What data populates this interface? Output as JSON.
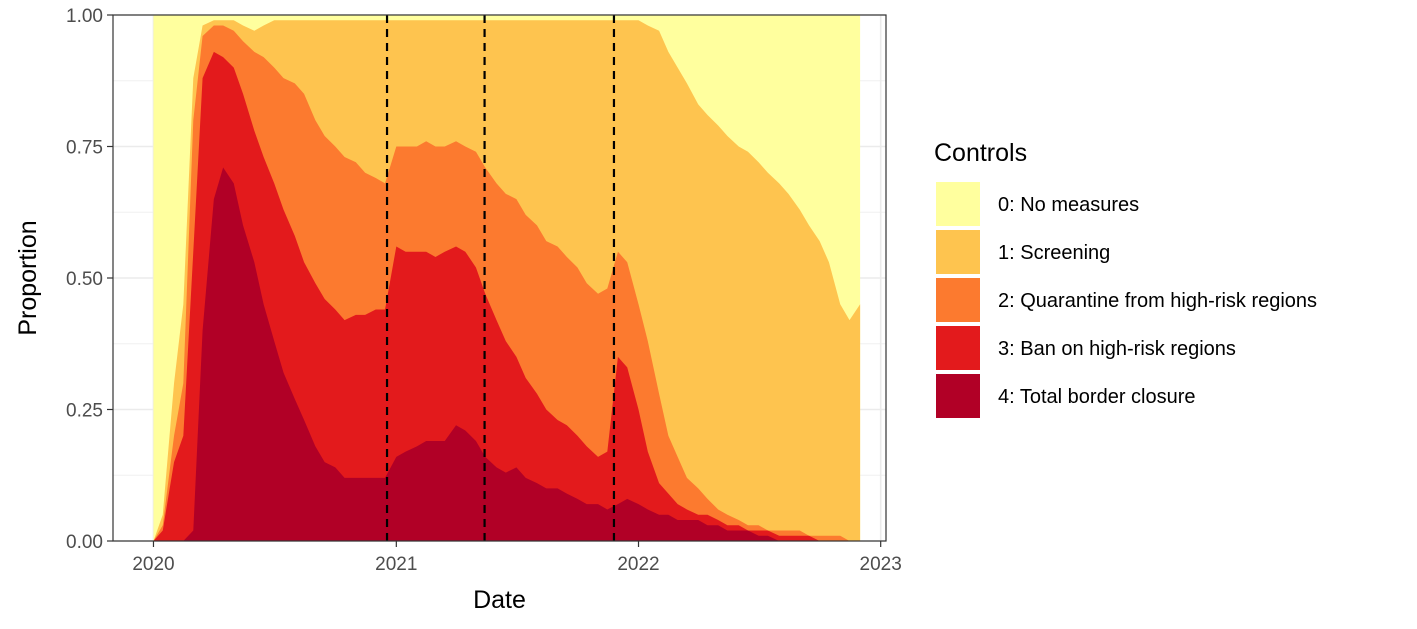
{
  "chart_data": {
    "type": "area",
    "stacked": true,
    "title": "",
    "xlabel": "Date",
    "ylabel": "Proportion",
    "x_ticks": [
      "2020",
      "2021",
      "2022",
      "2023"
    ],
    "y_ticks": [
      "0.00",
      "0.25",
      "0.50",
      "0.75",
      "1.00"
    ],
    "xlim": [
      "2019-11-01",
      "2023-01-09"
    ],
    "ylim": [
      0,
      1
    ],
    "grid": true,
    "reference_lines": [
      "2020-12-18",
      "2021-05-14",
      "2021-11-25"
    ],
    "legend": {
      "title": "Controls",
      "position": "right"
    },
    "x": [
      "2020-01-01",
      "2020-01-15",
      "2020-02-01",
      "2020-02-15",
      "2020-03-01",
      "2020-03-15",
      "2020-04-01",
      "2020-04-15",
      "2020-05-01",
      "2020-05-15",
      "2020-06-01",
      "2020-06-15",
      "2020-07-01",
      "2020-07-15",
      "2020-08-01",
      "2020-08-15",
      "2020-09-01",
      "2020-09-15",
      "2020-10-01",
      "2020-10-15",
      "2020-11-01",
      "2020-11-15",
      "2020-12-01",
      "2020-12-15",
      "2021-01-01",
      "2021-01-15",
      "2021-02-01",
      "2021-02-15",
      "2021-03-01",
      "2021-03-15",
      "2021-04-01",
      "2021-04-15",
      "2021-05-01",
      "2021-05-15",
      "2021-06-01",
      "2021-06-15",
      "2021-07-01",
      "2021-07-15",
      "2021-08-01",
      "2021-08-15",
      "2021-09-01",
      "2021-09-15",
      "2021-10-01",
      "2021-10-15",
      "2021-11-01",
      "2021-11-15",
      "2021-12-01",
      "2021-12-15",
      "2022-01-01",
      "2022-01-15",
      "2022-02-01",
      "2022-02-15",
      "2022-03-01",
      "2022-03-15",
      "2022-04-01",
      "2022-04-15",
      "2022-05-01",
      "2022-05-15",
      "2022-06-01",
      "2022-06-15",
      "2022-07-01",
      "2022-07-15",
      "2022-08-01",
      "2022-08-15",
      "2022-09-01",
      "2022-09-15",
      "2022-10-01",
      "2022-10-15",
      "2022-11-01",
      "2022-11-15",
      "2022-12-01"
    ],
    "series": [
      {
        "name": "4: Total border closure",
        "color": "#B10026",
        "values": [
          0,
          0,
          0,
          0,
          0.02,
          0.4,
          0.65,
          0.71,
          0.68,
          0.6,
          0.53,
          0.45,
          0.38,
          0.32,
          0.27,
          0.23,
          0.18,
          0.15,
          0.14,
          0.12,
          0.12,
          0.12,
          0.12,
          0.12,
          0.16,
          0.17,
          0.18,
          0.19,
          0.19,
          0.19,
          0.22,
          0.21,
          0.19,
          0.16,
          0.14,
          0.13,
          0.14,
          0.12,
          0.11,
          0.1,
          0.1,
          0.09,
          0.08,
          0.07,
          0.07,
          0.06,
          0.07,
          0.08,
          0.07,
          0.06,
          0.05,
          0.05,
          0.04,
          0.04,
          0.04,
          0.03,
          0.03,
          0.02,
          0.02,
          0.02,
          0.01,
          0.01,
          0,
          0,
          0,
          0,
          0,
          0,
          0,
          0,
          0
        ]
      },
      {
        "name": "3: Ban on high-risk regions",
        "color": "#E31A1C",
        "values": [
          0,
          0.02,
          0.15,
          0.2,
          0.55,
          0.88,
          0.93,
          0.92,
          0.9,
          0.85,
          0.78,
          0.73,
          0.68,
          0.63,
          0.58,
          0.53,
          0.49,
          0.46,
          0.44,
          0.42,
          0.43,
          0.43,
          0.44,
          0.44,
          0.56,
          0.55,
          0.55,
          0.55,
          0.54,
          0.55,
          0.56,
          0.55,
          0.52,
          0.47,
          0.42,
          0.38,
          0.35,
          0.31,
          0.28,
          0.25,
          0.23,
          0.22,
          0.2,
          0.18,
          0.16,
          0.17,
          0.35,
          0.33,
          0.25,
          0.17,
          0.11,
          0.09,
          0.07,
          0.06,
          0.05,
          0.05,
          0.04,
          0.03,
          0.03,
          0.02,
          0.02,
          0.02,
          0.01,
          0.01,
          0.01,
          0.01,
          0,
          0,
          0,
          0,
          0
        ]
      },
      {
        "name": "2: Quarantine from high-risk regions",
        "color": "#FC7A2F",
        "values": [
          0,
          0.03,
          0.2,
          0.3,
          0.8,
          0.96,
          0.98,
          0.98,
          0.97,
          0.95,
          0.93,
          0.92,
          0.9,
          0.88,
          0.87,
          0.85,
          0.8,
          0.77,
          0.75,
          0.73,
          0.72,
          0.7,
          0.69,
          0.68,
          0.75,
          0.75,
          0.75,
          0.76,
          0.75,
          0.75,
          0.76,
          0.75,
          0.74,
          0.71,
          0.68,
          0.66,
          0.65,
          0.62,
          0.6,
          0.57,
          0.56,
          0.54,
          0.52,
          0.49,
          0.47,
          0.48,
          0.55,
          0.53,
          0.45,
          0.38,
          0.28,
          0.2,
          0.16,
          0.12,
          0.1,
          0.08,
          0.06,
          0.05,
          0.04,
          0.03,
          0.03,
          0.02,
          0.02,
          0.02,
          0.02,
          0.01,
          0.01,
          0.01,
          0.01,
          0,
          0
        ]
      },
      {
        "name": "1: Screening",
        "color": "#FEC44F",
        "values": [
          0,
          0.05,
          0.3,
          0.45,
          0.88,
          0.98,
          0.99,
          0.99,
          0.99,
          0.98,
          0.97,
          0.98,
          0.99,
          0.99,
          0.99,
          0.99,
          0.99,
          0.99,
          0.99,
          0.99,
          0.99,
          0.99,
          0.99,
          0.99,
          0.99,
          0.99,
          0.99,
          0.99,
          0.99,
          0.99,
          0.99,
          0.99,
          0.99,
          0.99,
          0.99,
          0.99,
          0.99,
          0.99,
          0.99,
          0.99,
          0.99,
          0.99,
          0.99,
          0.99,
          0.99,
          0.99,
          0.99,
          0.99,
          0.99,
          0.98,
          0.97,
          0.93,
          0.9,
          0.87,
          0.83,
          0.81,
          0.79,
          0.77,
          0.75,
          0.74,
          0.72,
          0.7,
          0.68,
          0.66,
          0.63,
          0.6,
          0.57,
          0.53,
          0.45,
          0.42,
          0.45
        ]
      },
      {
        "name": "0: No measures",
        "color": "#FFFF9E",
        "values": [
          1,
          1,
          1,
          1,
          1,
          1,
          1,
          1,
          1,
          1,
          1,
          1,
          1,
          1,
          1,
          1,
          1,
          1,
          1,
          1,
          1,
          1,
          1,
          1,
          1,
          1,
          1,
          1,
          1,
          1,
          1,
          1,
          1,
          1,
          1,
          1,
          1,
          1,
          1,
          1,
          1,
          1,
          1,
          1,
          1,
          1,
          1,
          1,
          1,
          1,
          1,
          1,
          1,
          1,
          1,
          1,
          1,
          1,
          1,
          1,
          1,
          1,
          1,
          1,
          1,
          1,
          1,
          1,
          1,
          1,
          1
        ]
      }
    ],
    "value_encoding": "cumulative_top_boundary"
  }
}
